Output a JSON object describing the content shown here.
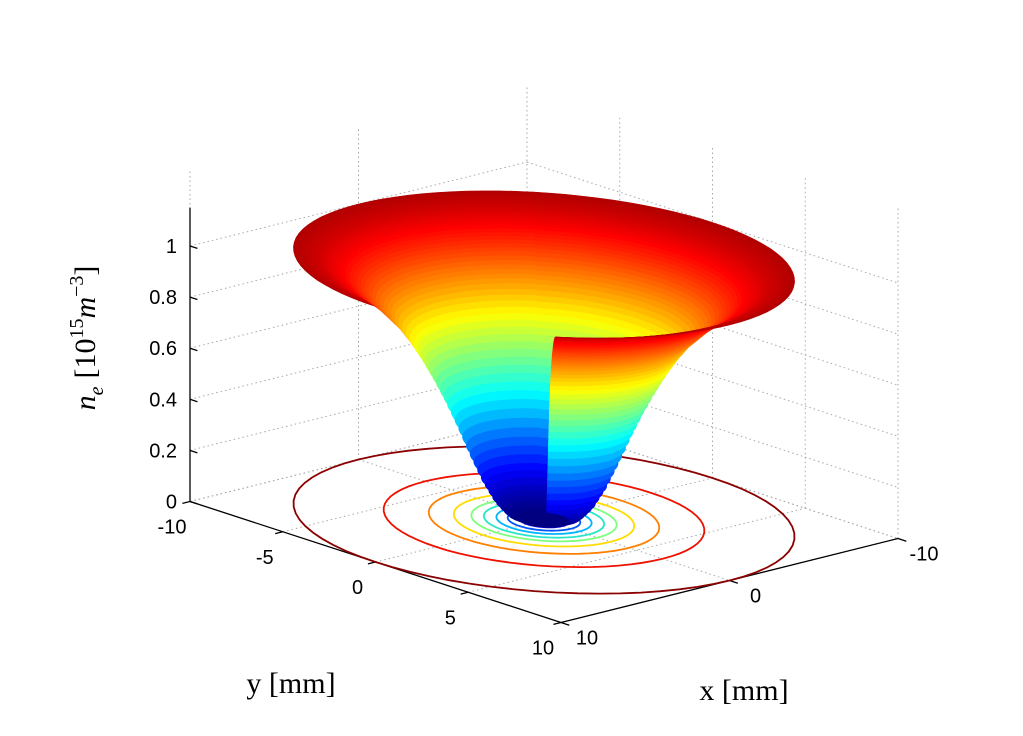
{
  "chart_data": {
    "type": "surface3d",
    "title": "",
    "xlabel": "x [mm]",
    "ylabel": "y [mm]",
    "zlabel_parts": [
      "n",
      "e",
      "[10",
      "15",
      "m",
      "−3",
      "]"
    ],
    "xlim": [
      -10,
      10
    ],
    "ylim": [
      -10,
      10
    ],
    "zlim": [
      0,
      1.1
    ],
    "x_ticks": [
      -10,
      -5,
      0,
      5,
      10
    ],
    "y_ticks": [
      -10,
      0,
      10
    ],
    "z_ticks": [
      0,
      0.2,
      0.4,
      0.6,
      0.8,
      1
    ],
    "x_tick_labels": [
      "-10",
      "-5",
      "0",
      "5",
      "10"
    ],
    "y_tick_labels": [
      "-10",
      "0",
      "10"
    ],
    "z_tick_labels": [
      "0",
      "0.2",
      "0.4",
      "0.6",
      "0.8",
      "1"
    ],
    "grid": true,
    "colormap": "jet",
    "surface": {
      "radius_mm": [
        1.0,
        1.5,
        2.0,
        2.5,
        3.0,
        3.5,
        4.0,
        4.5,
        5.0,
        5.5,
        6.0,
        7.0,
        8.0,
        9.0,
        10.0
      ],
      "n_e": [
        0.0,
        0.02,
        0.07,
        0.15,
        0.25,
        0.36,
        0.46,
        0.55,
        0.63,
        0.7,
        0.76,
        0.85,
        0.92,
        0.97,
        1.0
      ]
    },
    "contours": {
      "radii_mm": [
        0.6,
        1.0,
        1.45,
        1.9,
        2.4,
        2.9,
        3.6,
        4.6,
        6.4,
        10.0
      ],
      "colors": [
        "#1d1d9f",
        "#0000ff",
        "#0055ff",
        "#00b4ff",
        "#29e6c8",
        "#7dff7d",
        "#ffdc00",
        "#ff7f00",
        "#ee1100",
        "#8b0000"
      ]
    }
  }
}
